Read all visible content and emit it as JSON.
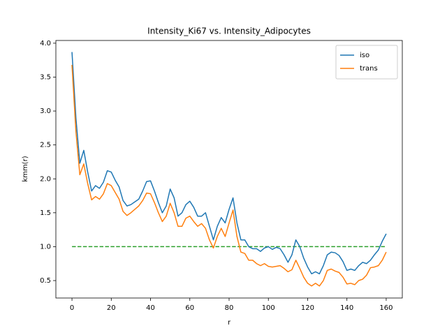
{
  "chart_data": {
    "type": "line",
    "title": "Intensity_Ki67 vs. Intensity_Adipocytes",
    "x_label": "r",
    "y_label": "kmm(r)",
    "x": [
      0,
      2,
      4,
      6,
      8,
      10,
      12,
      14,
      16,
      18,
      20,
      22,
      24,
      26,
      28,
      30,
      32,
      34,
      36,
      38,
      40,
      42,
      44,
      46,
      48,
      50,
      52,
      54,
      56,
      58,
      60,
      62,
      64,
      66,
      68,
      70,
      72,
      74,
      76,
      78,
      80,
      82,
      84,
      86,
      88,
      90,
      92,
      94,
      96,
      98,
      100,
      102,
      104,
      106,
      108,
      110,
      112,
      114,
      116,
      118,
      120,
      122,
      124,
      126,
      128,
      130,
      132,
      134,
      136,
      138,
      140,
      142,
      144,
      146,
      148,
      150,
      152,
      154,
      156,
      158,
      160
    ],
    "series": [
      {
        "name": "iso",
        "color": "#1f77b4",
        "values": [
          3.87,
          2.9,
          2.23,
          2.42,
          2.1,
          1.82,
          1.9,
          1.86,
          1.95,
          2.12,
          2.1,
          1.98,
          1.88,
          1.68,
          1.6,
          1.62,
          1.66,
          1.7,
          1.82,
          1.96,
          1.97,
          1.82,
          1.65,
          1.5,
          1.6,
          1.85,
          1.72,
          1.45,
          1.5,
          1.62,
          1.67,
          1.58,
          1.45,
          1.45,
          1.5,
          1.3,
          1.1,
          1.3,
          1.43,
          1.35,
          1.55,
          1.72,
          1.35,
          1.1,
          1.1,
          1.0,
          0.97,
          0.97,
          0.93,
          0.98,
          1.0,
          0.96,
          0.99,
          0.97,
          0.88,
          0.77,
          0.88,
          1.1,
          1.0,
          0.83,
          0.7,
          0.6,
          0.63,
          0.6,
          0.72,
          0.88,
          0.92,
          0.91,
          0.87,
          0.78,
          0.65,
          0.67,
          0.65,
          0.72,
          0.77,
          0.75,
          0.8,
          0.88,
          0.95,
          1.08,
          1.19
        ]
      },
      {
        "name": "trans",
        "color": "#ff7f0e",
        "values": [
          3.68,
          2.7,
          2.06,
          2.22,
          1.93,
          1.69,
          1.74,
          1.7,
          1.78,
          1.93,
          1.9,
          1.8,
          1.7,
          1.52,
          1.46,
          1.5,
          1.55,
          1.6,
          1.68,
          1.79,
          1.78,
          1.65,
          1.5,
          1.37,
          1.45,
          1.64,
          1.5,
          1.3,
          1.3,
          1.42,
          1.45,
          1.37,
          1.3,
          1.34,
          1.27,
          1.1,
          0.98,
          1.15,
          1.27,
          1.15,
          1.35,
          1.54,
          1.15,
          0.92,
          0.9,
          0.8,
          0.8,
          0.75,
          0.72,
          0.75,
          0.71,
          0.7,
          0.71,
          0.72,
          0.68,
          0.63,
          0.66,
          0.8,
          0.68,
          0.55,
          0.46,
          0.42,
          0.46,
          0.42,
          0.5,
          0.65,
          0.67,
          0.64,
          0.62,
          0.55,
          0.45,
          0.46,
          0.44,
          0.5,
          0.52,
          0.58,
          0.69,
          0.7,
          0.72,
          0.8,
          0.92
        ]
      }
    ],
    "reference_line": {
      "x": [
        0,
        160
      ],
      "values": [
        1,
        1
      ],
      "color": "#2ca02c",
      "dashed": true
    },
    "xlim": [
      -8.2,
      168.2
    ],
    "ylim": [
      0.243,
      4.04
    ],
    "xticks": [
      0,
      20,
      40,
      60,
      80,
      100,
      120,
      140,
      160
    ],
    "yticks": [
      0.5,
      {
        "value": 1,
        "label": "1.0"
      },
      1.5,
      {
        "value": 2,
        "label": "2.0"
      },
      2.5,
      {
        "value": 3,
        "label": "3.0"
      },
      3.5,
      {
        "value": 4,
        "label": "4.0"
      }
    ],
    "legend": "upper right",
    "grid": false
  }
}
